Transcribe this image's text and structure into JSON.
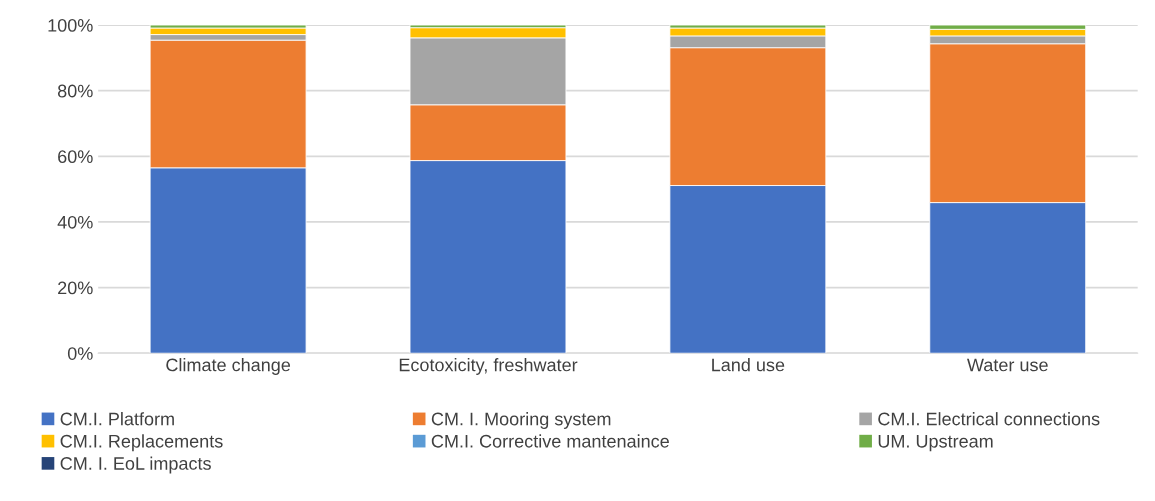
{
  "chart_data": {
    "type": "bar",
    "stacked": true,
    "categories": [
      "Climate change",
      "Ecotoxicity, freshwater",
      "Land use",
      "Water use"
    ],
    "series": [
      {
        "name": "CM.I. Platform",
        "color": "#4472c4",
        "values": [
          56.5,
          58.7,
          51.1,
          45.9
        ]
      },
      {
        "name": "CM. I. Mooring system",
        "color": "#ed7d31",
        "values": [
          38.9,
          17.0,
          42.0,
          48.4
        ]
      },
      {
        "name": "CM.I. Electrical connections",
        "color": "#a5a5a5",
        "values": [
          1.7,
          20.4,
          3.6,
          2.4
        ]
      },
      {
        "name": "CM.I. Replacements",
        "color": "#ffc000",
        "values": [
          2.0,
          3.1,
          2.4,
          2.0
        ]
      },
      {
        "name": "CM.I. Corrective mantenaince",
        "color": "#5b9bd5",
        "values": [
          0,
          0,
          0,
          0
        ]
      },
      {
        "name": "UM. Upstream",
        "color": "#70ad47",
        "values": [
          0.9,
          0.8,
          0.9,
          1.3
        ]
      },
      {
        "name": "CM. I. EoL impacts",
        "color": "#264478",
        "values": [
          0,
          0,
          0,
          0
        ]
      }
    ],
    "ylim": [
      0,
      100
    ],
    "yticks": [
      {
        "value": 0,
        "label": "0%"
      },
      {
        "value": 20,
        "label": "20%"
      },
      {
        "value": 40,
        "label": "40%"
      },
      {
        "value": 60,
        "label": "60%"
      },
      {
        "value": 80,
        "label": "80%"
      },
      {
        "value": 100,
        "label": "100%"
      }
    ],
    "grid": "y",
    "legend": "bottom"
  }
}
